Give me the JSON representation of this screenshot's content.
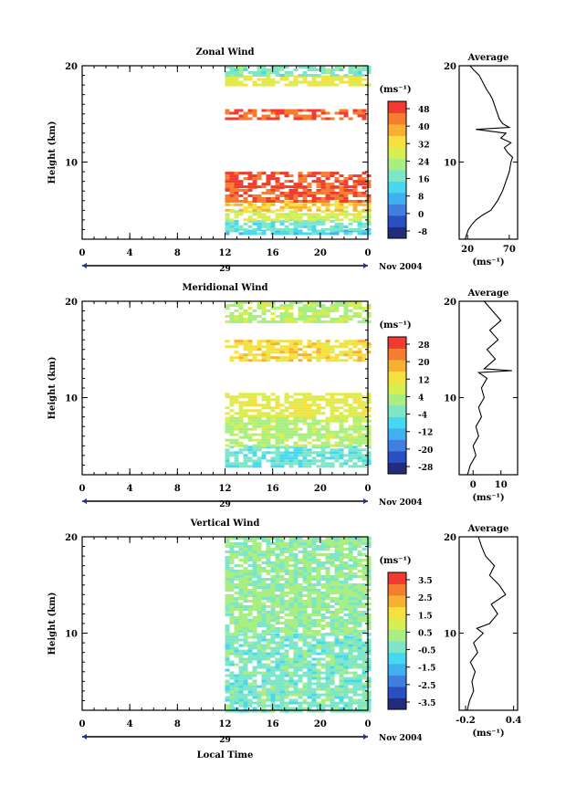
{
  "chart_data": [
    {
      "type": "heatmap",
      "title": "Zonal Wind",
      "ylabel": "Height (km)",
      "xlabel": "",
      "units_label": "(ms⁻¹)",
      "ylim": [
        2,
        20
      ],
      "yticks": [
        "10",
        "20"
      ],
      "xticks": [
        "0",
        "4",
        "8",
        "12",
        "16",
        "20",
        "0"
      ],
      "xlim": [
        0,
        24
      ],
      "date_label": "29",
      "month_label": "Nov 2004",
      "data_start_hour": 12,
      "colorbar": {
        "ticks": [
          "48",
          "40",
          "32",
          "24",
          "16",
          "8",
          "0",
          "-8"
        ],
        "colors": [
          "#232c7a",
          "#2a4fc0",
          "#3f7fe0",
          "#3fb0f0",
          "#46d8f0",
          "#7ee6c8",
          "#a8ee80",
          "#d8ee50",
          "#f6e040",
          "#f8b030",
          "#f67c30",
          "#f03c30"
        ]
      },
      "profile": {
        "title": "Average",
        "xticks": [
          "20",
          "70"
        ],
        "xlabel": "(ms⁻¹)",
        "yticks": [
          "10",
          "20"
        ],
        "xlim": [
          10,
          80
        ],
        "points": [
          [
            17,
            2
          ],
          [
            21,
            3
          ],
          [
            25,
            3.5
          ],
          [
            30,
            4
          ],
          [
            38,
            4.5
          ],
          [
            48,
            5
          ],
          [
            56,
            6
          ],
          [
            62,
            7
          ],
          [
            66,
            8
          ],
          [
            70,
            9
          ],
          [
            72,
            10
          ],
          [
            74,
            10.5
          ],
          [
            68,
            11
          ],
          [
            64,
            11.5
          ],
          [
            72,
            12
          ],
          [
            60,
            12.5
          ],
          [
            66,
            13
          ],
          [
            30,
            13.4
          ],
          [
            70,
            13.6
          ],
          [
            62,
            14
          ],
          [
            58,
            14.5
          ],
          [
            56,
            15
          ],
          [
            54,
            15.5
          ],
          [
            52,
            16
          ],
          [
            50,
            16.5
          ],
          [
            47,
            17
          ],
          [
            43,
            17.5
          ],
          [
            40,
            18
          ],
          [
            37,
            18.5
          ],
          [
            34,
            19
          ],
          [
            28,
            19.5
          ],
          [
            23,
            20
          ]
        ]
      },
      "observations": [
        {
          "h_from": 2.5,
          "h_to": 3,
          "value": 12
        },
        {
          "h_from": 3,
          "h_to": 4,
          "value": 16
        },
        {
          "h_from": 4,
          "h_to": 5,
          "value": 28
        },
        {
          "h_from": 5,
          "h_to": 6,
          "value": 36
        },
        {
          "h_from": 6,
          "h_to": 7.5,
          "value": 46
        },
        {
          "h_from": 7.5,
          "h_to": 9,
          "value": 48
        },
        {
          "h_from": 14.5,
          "h_to": 15.5,
          "value": 46
        },
        {
          "h_from": 18,
          "h_to": 19,
          "value": 30
        },
        {
          "h_from": 19,
          "h_to": 20,
          "value": 18
        }
      ]
    },
    {
      "type": "heatmap",
      "title": "Meridional Wind",
      "ylabel": "Height (km)",
      "xlabel": "",
      "units_label": "(ms⁻¹)",
      "ylim": [
        2,
        20
      ],
      "yticks": [
        "10",
        "20"
      ],
      "xticks": [
        "0",
        "4",
        "8",
        "12",
        "16",
        "20",
        "0"
      ],
      "xlim": [
        0,
        24
      ],
      "date_label": "29",
      "month_label": "Nov 2004",
      "data_start_hour": 12,
      "colorbar": {
        "ticks": [
          "28",
          "20",
          "12",
          "4",
          "-4",
          "-12",
          "-20",
          "-28"
        ],
        "colors": [
          "#232c7a",
          "#2a4fc0",
          "#3f7fe0",
          "#3fb0f0",
          "#46d8f0",
          "#7ee6c8",
          "#a8ee80",
          "#d8ee50",
          "#f6e040",
          "#f8b030",
          "#f67c30",
          "#f03c30"
        ]
      },
      "profile": {
        "title": "Average",
        "xticks": [
          "0",
          "10"
        ],
        "xlabel": "(ms⁻¹)",
        "yticks": [
          "10",
          "20"
        ],
        "xlim": [
          -5,
          16
        ],
        "points": [
          [
            -2,
            2
          ],
          [
            -1,
            3
          ],
          [
            1,
            4
          ],
          [
            0,
            5
          ],
          [
            2,
            6
          ],
          [
            1,
            7
          ],
          [
            3,
            8
          ],
          [
            2,
            9
          ],
          [
            4,
            10
          ],
          [
            3,
            11
          ],
          [
            5,
            12
          ],
          [
            2,
            12.6
          ],
          [
            14,
            12.8
          ],
          [
            4,
            13
          ],
          [
            8,
            14
          ],
          [
            5,
            15
          ],
          [
            9,
            16
          ],
          [
            6,
            17
          ],
          [
            10,
            18
          ],
          [
            7,
            19
          ],
          [
            4,
            20
          ]
        ]
      },
      "observations": [
        {
          "h_from": 3,
          "h_to": 5,
          "value": -4
        },
        {
          "h_from": 5,
          "h_to": 8,
          "value": 4
        },
        {
          "h_from": 8,
          "h_to": 10.5,
          "value": 10
        },
        {
          "h_from": 14,
          "h_to": 16,
          "value": 14
        },
        {
          "h_from": 18,
          "h_to": 20,
          "value": 4
        }
      ]
    },
    {
      "type": "heatmap",
      "title": "Vertical Wind",
      "ylabel": "Height (km)",
      "xlabel": "Local Time",
      "units_label": "(ms⁻¹)",
      "ylim": [
        2,
        20
      ],
      "yticks": [
        "10",
        "20"
      ],
      "xticks": [
        "0",
        "4",
        "8",
        "12",
        "16",
        "20",
        "0"
      ],
      "xlim": [
        0,
        24
      ],
      "date_label": "29",
      "month_label": "Nov 2004",
      "data_start_hour": 12,
      "colorbar": {
        "ticks": [
          "3.5",
          "2.5",
          "1.5",
          "0.5",
          "-0.5",
          "-1.5",
          "-2.5",
          "-3.5"
        ],
        "colors": [
          "#232c7a",
          "#2a4fc0",
          "#3f7fe0",
          "#3fb0f0",
          "#46d8f0",
          "#7ee6c8",
          "#a8ee80",
          "#d8ee50",
          "#f6e040",
          "#f8b030",
          "#f67c30",
          "#f03c30"
        ]
      },
      "profile": {
        "title": "Average",
        "xticks": [
          "-0.2",
          "0.4"
        ],
        "xlabel": "(ms⁻¹)",
        "yticks": [
          "10",
          "20"
        ],
        "xlim": [
          -0.28,
          0.45
        ],
        "points": [
          [
            -0.18,
            2
          ],
          [
            -0.15,
            3
          ],
          [
            -0.1,
            4
          ],
          [
            -0.12,
            5
          ],
          [
            -0.08,
            6
          ],
          [
            -0.14,
            7
          ],
          [
            -0.05,
            8
          ],
          [
            -0.1,
            9
          ],
          [
            0.02,
            10
          ],
          [
            -0.06,
            10.5
          ],
          [
            0.1,
            11
          ],
          [
            0.2,
            12
          ],
          [
            0.12,
            13
          ],
          [
            0.3,
            14
          ],
          [
            0.22,
            15
          ],
          [
            0.1,
            16
          ],
          [
            0.16,
            17
          ],
          [
            0.05,
            18
          ],
          [
            0.0,
            19
          ],
          [
            -0.04,
            20
          ]
        ]
      },
      "observations": [
        {
          "h_from": 2,
          "h_to": 10,
          "value": -0.3
        },
        {
          "h_from": 10,
          "h_to": 20,
          "value": 0.1
        }
      ]
    }
  ]
}
